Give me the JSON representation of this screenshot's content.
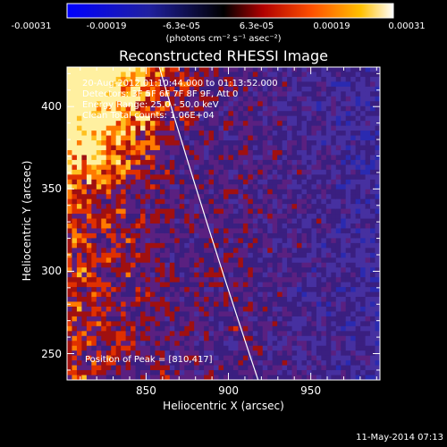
{
  "chart_data": {
    "type": "heatmap",
    "title": "Reconstructed RHESSI Image",
    "xlabel": "Heliocentric X (arcsec)",
    "ylabel": "Heliocentric Y (arcsec)",
    "xlim": [
      802,
      992
    ],
    "ylim": [
      234,
      424
    ],
    "xticks": [
      850,
      900,
      950
    ],
    "yticks": [
      250,
      300,
      350,
      400
    ],
    "colorbar": {
      "label": "(photons cm⁻² s⁻¹ asec⁻²)",
      "range": [
        -0.00031,
        0.00031
      ],
      "ticks": [
        "-0.00031",
        "-0.00019",
        "-6.3e-05",
        "6.3e-05",
        "0.00019",
        "0.00031"
      ]
    },
    "info_lines": [
      "20-Aug-2012 01:10:44.000 to 01:13:52.000",
      "Detectors: 3F 5F 6F 7F 8F 9F, Att 0",
      "Energy Range: 25.0 - 50.0 keV",
      "Clean    Total counts: 1.06E+04"
    ],
    "peak_label": "Position of Peak = [810,417]",
    "peak": [
      810,
      417
    ],
    "limb_color": "#ffffff"
  },
  "timestamp": "11-May-2014 07:13"
}
